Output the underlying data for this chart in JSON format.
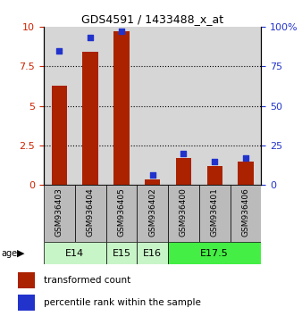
{
  "title": "GDS4591 / 1433488_x_at",
  "samples": [
    "GSM936403",
    "GSM936404",
    "GSM936405",
    "GSM936402",
    "GSM936400",
    "GSM936401",
    "GSM936406"
  ],
  "transformed_count": [
    6.3,
    8.4,
    9.7,
    0.35,
    1.7,
    1.2,
    1.45
  ],
  "percentile_rank": [
    85,
    93,
    97,
    6,
    20,
    15,
    17
  ],
  "age_spans": [
    {
      "label": "E14",
      "start": 0,
      "end": 2,
      "color": "#c8f5c8"
    },
    {
      "label": "E15",
      "start": 2,
      "end": 3,
      "color": "#c8f5c8"
    },
    {
      "label": "E16",
      "start": 3,
      "end": 4,
      "color": "#c8f5c8"
    },
    {
      "label": "E17.5",
      "start": 4,
      "end": 7,
      "color": "#44ee44"
    }
  ],
  "ylim_left": [
    0,
    10
  ],
  "ylim_right": [
    0,
    100
  ],
  "yticks_left": [
    0,
    2.5,
    5,
    7.5,
    10
  ],
  "yticks_right": [
    0,
    25,
    50,
    75,
    100
  ],
  "ytick_labels_left": [
    "0",
    "2.5",
    "5",
    "7.5",
    "10"
  ],
  "ytick_labels_right": [
    "0",
    "25",
    "50",
    "75",
    "100%"
  ],
  "bar_color": "#aa2200",
  "dot_color": "#2233cc",
  "bar_width": 0.5,
  "dot_size": 18,
  "sample_bg_color": "#bbbbbb",
  "legend_items": [
    {
      "label": "transformed count",
      "color": "#aa2200"
    },
    {
      "label": "percentile rank within the sample",
      "color": "#2233cc"
    }
  ],
  "age_label": "age"
}
